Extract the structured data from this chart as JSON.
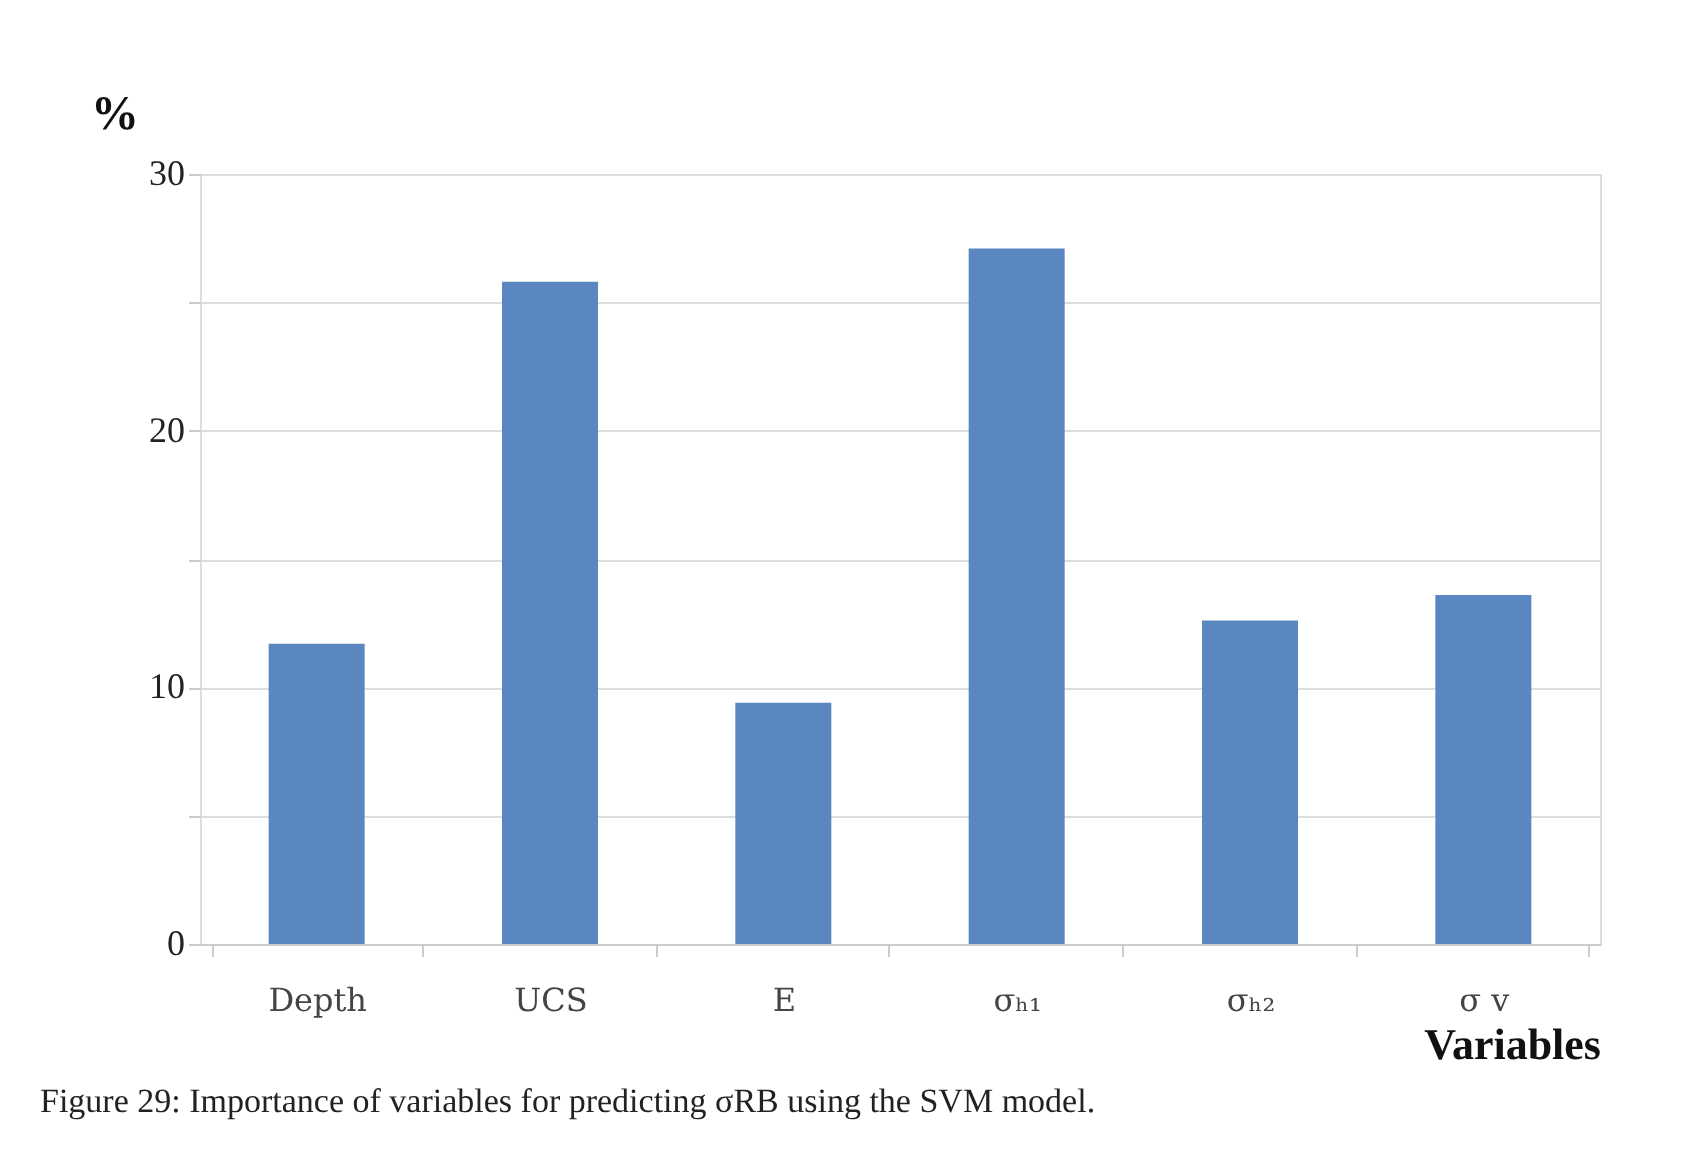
{
  "chart_data": {
    "type": "bar",
    "categories": [
      "Depth",
      "UCS",
      "E",
      "σₕ₁",
      "σₕ₂",
      "σ v"
    ],
    "values": [
      11.7,
      25.8,
      9.4,
      27.1,
      12.6,
      13.6
    ],
    "color": "#5b87c0",
    "xlabel": "Variables",
    "ylabel": "%",
    "ylim": [
      0,
      30
    ],
    "yticks": [
      0,
      {
        "value": 5,
        "label": null
      },
      10,
      {
        "value": 15,
        "label": null
      },
      20,
      {
        "value": 25,
        "label": null
      },
      30
    ],
    "grid": "y",
    "annotations": [
      "Figure 29: Importance of variables for predicting σRB using the SVM model."
    ]
  }
}
